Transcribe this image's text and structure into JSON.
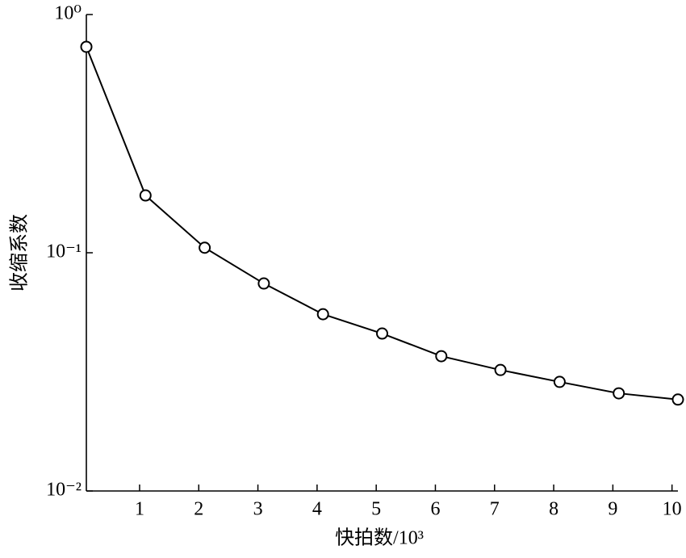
{
  "chart_data": {
    "type": "line",
    "xlabel": "快拍数/10³",
    "ylabel": "收缩系数",
    "x": [
      0.1,
      1.1,
      2.1,
      3.1,
      4.1,
      5.1,
      6.1,
      7.1,
      8.1,
      9.1,
      10.1
    ],
    "series": [
      {
        "color": "#000000",
        "marker": "circle",
        "values": [
          0.732,
          0.174,
          0.105,
          0.0743,
          0.0552,
          0.0458,
          0.0368,
          0.0322,
          0.0287,
          0.0257,
          0.0242
        ]
      }
    ],
    "xlim": [
      0.1,
      10.1
    ],
    "xticks": [
      1,
      2,
      3,
      4,
      5,
      6,
      7,
      8,
      9,
      10
    ],
    "ylim": [
      0.01,
      1
    ],
    "yticks": [
      {
        "value": 1,
        "label": "10⁰"
      },
      {
        "value": 0.1,
        "label": "10⁻¹"
      },
      {
        "value": 0.01,
        "label": "10⁻²"
      }
    ],
    "ylog": true
  }
}
